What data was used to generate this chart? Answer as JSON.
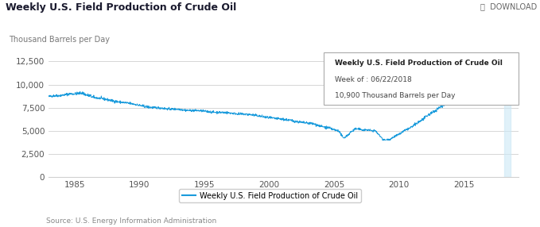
{
  "title": "Weekly U.S. Field Production of Crude Oil",
  "ylabel": "Thousand Barrels per Day",
  "download_text": "⤓  DOWNLOAD",
  "source_text": "Source: U.S. Energy Information Administration",
  "legend_label": "Weekly U.S. Field Production of Crude Oil",
  "tooltip_title": "Weekly U.S. Field Production of Crude Oil",
  "tooltip_line1": "Week of : 06/22/2018",
  "tooltip_line2": "10,900 Thousand Barrels per Day",
  "line_color": "#1a9bdc",
  "tooltip_highlight_color": "#cce8f6",
  "ylim": [
    0,
    13500
  ],
  "yticks": [
    0,
    2500,
    5000,
    7500,
    10000,
    12500
  ],
  "ytick_labels": [
    "0",
    "2,500",
    "5,000",
    "7,500",
    "10,000",
    "12,500"
  ],
  "year_start": 1983.0,
  "year_end": 2019.2,
  "xtick_years": [
    1985,
    1990,
    1995,
    2000,
    2005,
    2010,
    2015
  ],
  "bg_color": "#ffffff",
  "grid_color": "#d0d0d0",
  "title_fontsize": 9,
  "axis_fontsize": 7.5
}
